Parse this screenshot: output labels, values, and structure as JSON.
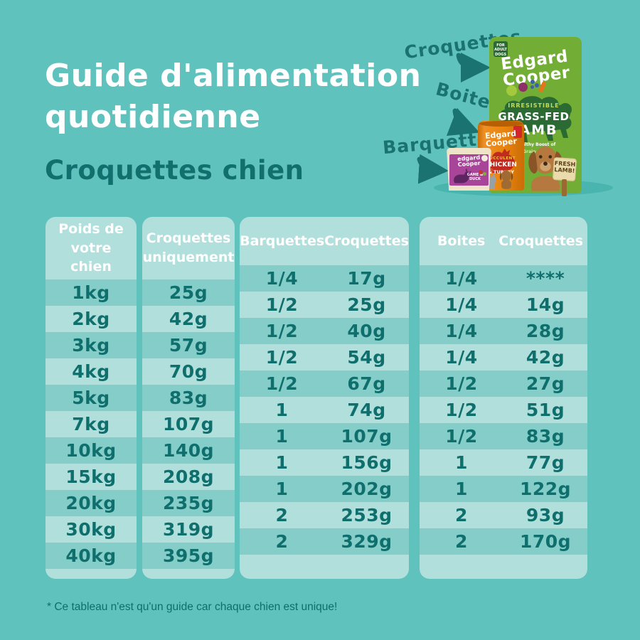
{
  "header": {
    "title_line1": "Guide d'alimentation",
    "title_line2": "quotidienne",
    "subtitle": "Croquettes chien"
  },
  "callouts": {
    "croquettes": "Croquettes",
    "boites": "Boites",
    "barquettes": "Barquettes"
  },
  "products": {
    "bag": {
      "badge": "FOR ADULT DOGS",
      "brand_line1": "Edgard",
      "brand_line2": "Cooper",
      "tag1": "IRRESISTIBLE",
      "tag2": "GRASS-FED",
      "tag3": "LAMB",
      "note": "Healthy Boost of",
      "grain": "Grain-Free",
      "sign_line1": "FRESH",
      "sign_line2": "LAMB!"
    },
    "can": {
      "brand_line1": "Edgard",
      "brand_line2": "Cooper",
      "t1": "SUCCULENT",
      "t2": "CHICKEN",
      "t3": "& TURKEY"
    },
    "tray": {
      "brand_line1": "edgard",
      "brand_line2": "Cooper",
      "t1": "GAME & DUCK"
    }
  },
  "chart_data": {
    "type": "table",
    "title": "Guide d'alimentation quotidienne - Croquettes chien",
    "weights": [
      "1kg",
      "2kg",
      "3kg",
      "4kg",
      "5kg",
      "7kg",
      "10kg",
      "15kg",
      "20kg",
      "30kg",
      "40kg"
    ],
    "croquettes_uniquement": [
      "25g",
      "42g",
      "57g",
      "70g",
      "83g",
      "107g",
      "140g",
      "208g",
      "235g",
      "319g",
      "395g"
    ],
    "barquettes": [
      "1/4",
      "1/2",
      "1/2",
      "1/2",
      "1/2",
      "1",
      "1",
      "1",
      "1",
      "2",
      "2"
    ],
    "barquettes_croquettes": [
      "17g",
      "25g",
      "40g",
      "54g",
      "67g",
      "74g",
      "107g",
      "156g",
      "202g",
      "253g",
      "329g"
    ],
    "boites": [
      "1/4",
      "1/4",
      "1/4",
      "1/4",
      "1/2",
      "1/2",
      "1/2",
      "1",
      "1",
      "2",
      "2"
    ],
    "boites_croquettes": [
      "****",
      "14g",
      "28g",
      "42g",
      "27g",
      "51g",
      "83g",
      "77g",
      "122g",
      "93g",
      "170g"
    ]
  },
  "tables": {
    "weight": {
      "header": "Poids de votre chien",
      "rows": [
        "1kg",
        "2kg",
        "3kg",
        "4kg",
        "5kg",
        "7kg",
        "10kg",
        "15kg",
        "20kg",
        "30kg",
        "40kg"
      ]
    },
    "kibble_only": {
      "header": "Croquettes uniquement",
      "rows": [
        "25g",
        "42g",
        "57g",
        "70g",
        "83g",
        "107g",
        "140g",
        "208g",
        "235g",
        "319g",
        "395g"
      ]
    },
    "trays": {
      "col1": "Barquettes",
      "col2": "Croquettes",
      "rows": [
        [
          "1/4",
          "17g"
        ],
        [
          "1/2",
          "25g"
        ],
        [
          "1/2",
          "40g"
        ],
        [
          "1/2",
          "54g"
        ],
        [
          "1/2",
          "67g"
        ],
        [
          "1",
          "74g"
        ],
        [
          "1",
          "107g"
        ],
        [
          "1",
          "156g"
        ],
        [
          "1",
          "202g"
        ],
        [
          "2",
          "253g"
        ],
        [
          "2",
          "329g"
        ]
      ]
    },
    "cans": {
      "col1": "Boites",
      "col2": "Croquettes",
      "rows": [
        [
          "1/4",
          "****"
        ],
        [
          "1/4",
          "14g"
        ],
        [
          "1/4",
          "28g"
        ],
        [
          "1/4",
          "42g"
        ],
        [
          "1/2",
          "27g"
        ],
        [
          "1/2",
          "51g"
        ],
        [
          "1/2",
          "83g"
        ],
        [
          "1",
          "77g"
        ],
        [
          "1",
          "122g"
        ],
        [
          "2",
          "93g"
        ],
        [
          "2",
          "170g"
        ]
      ]
    }
  },
  "footnote": "* Ce tableau n'est qu'un guide car chaque chien est unique!",
  "colors": {
    "background": "#5fc2bd",
    "card": "#b0dfdc",
    "stripe": "#85cdc9",
    "text_dark": "#0e6f6d",
    "text_white": "#ffffff",
    "bag_green": "#72ad35",
    "can_orange": "#e8830d",
    "tray_purple": "#a84598"
  }
}
